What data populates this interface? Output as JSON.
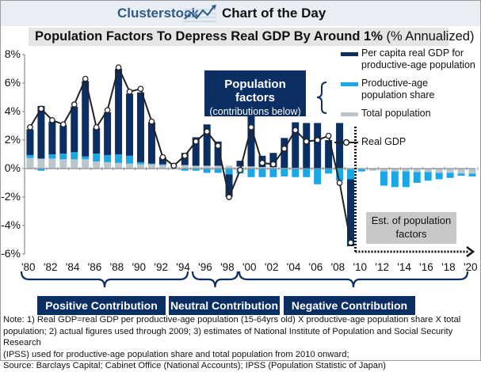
{
  "header": {
    "brand": "Clusterstock",
    "logo_icon": "rising-chart-icon",
    "feature": "Chart of the Day"
  },
  "chart_data": {
    "type": "bar",
    "title": "Population Factors To Depress Real GDP By Around 1%",
    "subtitle": "(% Annualized)",
    "xlabel": "",
    "ylabel": "",
    "ylim": [
      -6,
      8
    ],
    "yticks": [
      "8%",
      "6%",
      "4%",
      "2%",
      "0%",
      "-2%",
      "-4%",
      "-6%"
    ],
    "ytick_values": [
      8,
      6,
      4,
      2,
      0,
      -2,
      -4,
      -6
    ],
    "xtick_labels": [
      "'80",
      "'82",
      "'84",
      "'86",
      "'88",
      "'90",
      "'92",
      "'94",
      "'96",
      "'98",
      "'00",
      "'02",
      "'04",
      "'06",
      "'08",
      "'10",
      "'12",
      "'14",
      "'16",
      "'18",
      "'20"
    ],
    "categories": [
      1980,
      1981,
      1982,
      1983,
      1984,
      1985,
      1986,
      1987,
      1988,
      1989,
      1990,
      1991,
      1992,
      1993,
      1994,
      1995,
      1996,
      1997,
      1998,
      1999,
      2000,
      2001,
      2002,
      2003,
      2004,
      2005,
      2006,
      2007,
      2008,
      2009,
      2010,
      2011,
      2012,
      2013,
      2014,
      2015,
      2016,
      2017,
      2018,
      2019,
      2020
    ],
    "stacked": true,
    "series": [
      {
        "name": "Total population",
        "color": "#b9c6cc",
        "values": [
          0.75,
          0.7,
          0.7,
          0.65,
          0.65,
          0.65,
          0.5,
          0.45,
          0.4,
          0.35,
          0.3,
          0.3,
          0.25,
          0.25,
          0.25,
          0.2,
          0.2,
          0.2,
          0.2,
          0.15,
          0.15,
          0.1,
          0.1,
          0.05,
          0.05,
          0.0,
          0.0,
          0.0,
          0.0,
          -0.05,
          -0.05,
          -0.15,
          -0.2,
          -0.2,
          -0.2,
          -0.25,
          -0.25,
          -0.3,
          -0.3,
          -0.35,
          -0.35
        ]
      },
      {
        "name": "Productive-age population share",
        "color": "#1aa7e5",
        "values": [
          0.2,
          -0.15,
          0.3,
          0.4,
          0.5,
          0.2,
          0.55,
          0.5,
          0.6,
          0.55,
          0.15,
          0.05,
          0.05,
          0.0,
          -0.15,
          -0.15,
          -0.3,
          -0.3,
          -0.4,
          -0.35,
          -0.6,
          -0.6,
          -0.6,
          -0.55,
          -0.6,
          -0.6,
          -1.1,
          -0.35,
          -0.85,
          -0.7,
          -0.15,
          0.0,
          -1.0,
          -1.1,
          -1.1,
          -0.75,
          -0.6,
          -0.45,
          -0.35,
          -0.15,
          -0.2
        ]
      },
      {
        "name": "Per capita real GDP for productive-age population",
        "color": "#0b2f63",
        "values": [
          1.8,
          3.7,
          2.3,
          2.0,
          3.2,
          5.3,
          1.8,
          3.0,
          6.0,
          4.35,
          4.9,
          2.9,
          0.5,
          0.0,
          0.85,
          2.0,
          2.9,
          1.7,
          -1.6,
          0.4,
          3.8,
          0.8,
          1.0,
          2.1,
          3.2,
          3.2,
          3.2,
          2.0,
          3.2,
          -4.7,
          0,
          0,
          0,
          0,
          0,
          0,
          0,
          0,
          0,
          0,
          0
        ]
      }
    ],
    "line_series": {
      "name": "Real GDP",
      "color": "#222222",
      "values": [
        2.9,
        4.2,
        3.4,
        3.1,
        4.5,
        6.3,
        2.9,
        4.1,
        7.1,
        5.4,
        5.6,
        3.3,
        0.8,
        0.2,
        0.9,
        1.9,
        2.6,
        1.6,
        -2.0,
        -0.1,
        2.9,
        0.4,
        0.3,
        1.4,
        2.7,
        1.9,
        2.0,
        2.3,
        -1.0,
        -5.2
      ],
      "years_from": 1980
    },
    "annotations": {
      "population_factors": "Population factors",
      "population_factors_sub": "(contributions below)",
      "estimate": "Est. of population factors",
      "estimate_from_year": 2010
    },
    "legend": {
      "placement": "top-right",
      "items": [
        {
          "label": "Per capita real GDP for productive-age population",
          "color": "#0b2f63"
        },
        {
          "label": "Productive-age population share",
          "color": "#1aa7e5"
        },
        {
          "label": "Total population",
          "color": "#b9c6cc"
        },
        {
          "label": "Real GDP",
          "marker": "line-circle"
        }
      ]
    },
    "periods": [
      {
        "label": "Positive Contribution",
        "from": 1980,
        "to": 1994
      },
      {
        "label": "Neutral Contribution",
        "from": 1996,
        "to": 1999
      },
      {
        "label": "Negative Contribution",
        "from": 2000,
        "to": 2020
      }
    ],
    "grid": false
  },
  "legend_text": {
    "l1a": "Per capita real GDP for",
    "l1b": "productive-age population",
    "l2a": "Productive-age",
    "l2b": "population share",
    "l3": "Total population",
    "l4": "Real GDP"
  },
  "estimate_box": {
    "line1": "Est. of population",
    "line2": "factors"
  },
  "note": {
    "line1": "Note: 1) Real GDP=real GDP per productive-age population (15-64yrs old) X productive-age population share X total",
    "line2": "population; 2) actual figures used through 2009; 3) estimates of National Institute of Population and Social Security Research",
    "line3": "(IPSS) used for productive-age population share and total population from 2010 onward;",
    "line4": "Source: Barclays Capital; Cabinet Office (National Accounts); IPSS (Population Statistic of Japan)"
  }
}
